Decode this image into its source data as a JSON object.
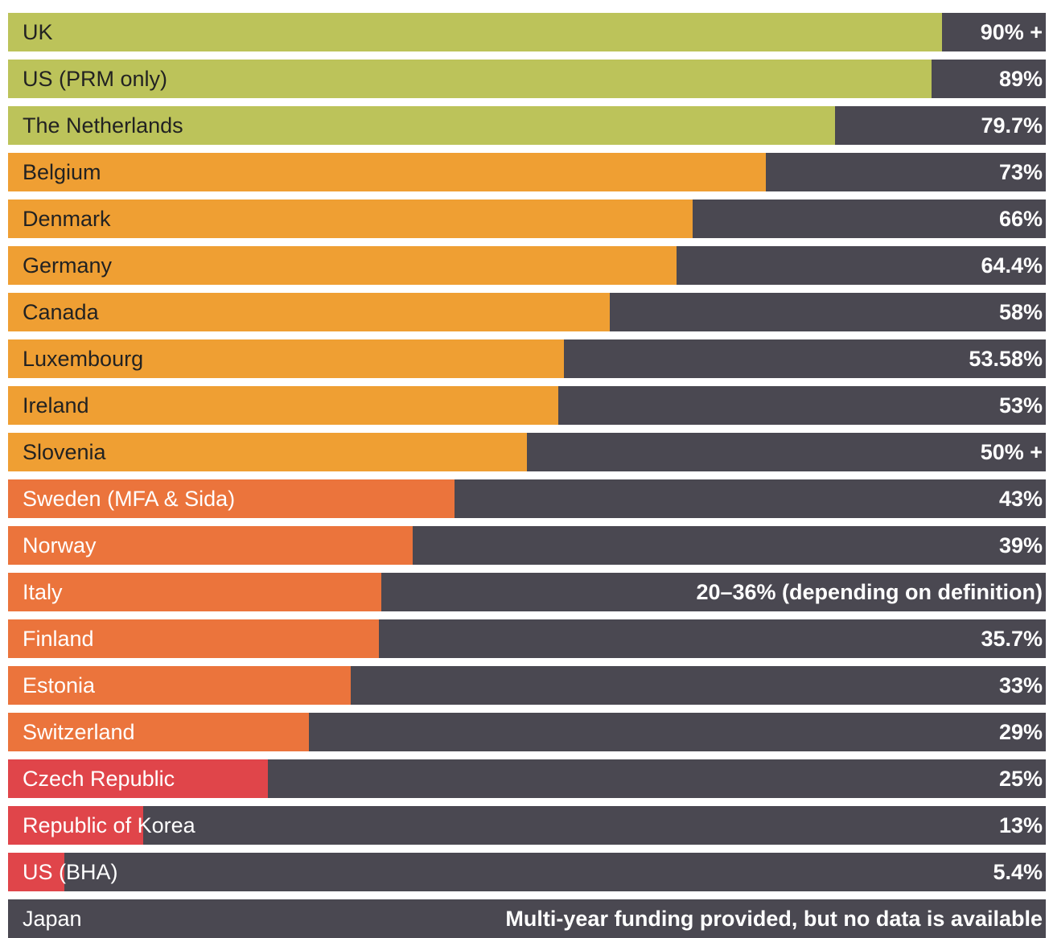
{
  "chart_data": {
    "type": "bar",
    "orientation": "horizontal",
    "xlim": [
      0,
      100
    ],
    "colors": {
      "track": "#4a4851",
      "green": "#bcc35a",
      "amber": "#ef9f33",
      "orange": "#eb743c",
      "red": "#e0454a"
    },
    "bars": [
      {
        "category": "UK",
        "value": 90,
        "display": "90% +",
        "color": "#bcc35a",
        "label_color": "#222222"
      },
      {
        "category": "US (PRM only)",
        "value": 89,
        "display": "89%",
        "color": "#bcc35a",
        "label_color": "#222222"
      },
      {
        "category": "The Netherlands",
        "value": 79.7,
        "display": "79.7%",
        "color": "#bcc35a",
        "label_color": "#222222"
      },
      {
        "category": "Belgium",
        "value": 73,
        "display": "73%",
        "color": "#ef9f33",
        "label_color": "#222222"
      },
      {
        "category": "Denmark",
        "value": 66,
        "display": "66%",
        "color": "#ef9f33",
        "label_color": "#222222"
      },
      {
        "category": "Germany",
        "value": 64.4,
        "display": "64.4%",
        "color": "#ef9f33",
        "label_color": "#222222"
      },
      {
        "category": "Canada",
        "value": 58,
        "display": "58%",
        "color": "#ef9f33",
        "label_color": "#222222"
      },
      {
        "category": "Luxembourg",
        "value": 53.58,
        "display": "53.58%",
        "color": "#ef9f33",
        "label_color": "#222222"
      },
      {
        "category": "Ireland",
        "value": 53,
        "display": "53%",
        "color": "#ef9f33",
        "label_color": "#222222"
      },
      {
        "category": "Slovenia",
        "value": 50,
        "display": "50% +",
        "color": "#ef9f33",
        "label_color": "#222222"
      },
      {
        "category": "Sweden (MFA & Sida)",
        "value": 43,
        "display": "43%",
        "color": "#eb743c",
        "label_color": "#ffffff"
      },
      {
        "category": "Norway",
        "value": 39,
        "display": "39%",
        "color": "#eb743c",
        "label_color": "#ffffff"
      },
      {
        "category": "Italy",
        "value": 36,
        "display": "20–36% (depending on definition)",
        "color": "#eb743c",
        "label_color": "#ffffff"
      },
      {
        "category": "Finland",
        "value": 35.7,
        "display": "35.7%",
        "color": "#eb743c",
        "label_color": "#ffffff"
      },
      {
        "category": "Estonia",
        "value": 33,
        "display": "33%",
        "color": "#eb743c",
        "label_color": "#ffffff"
      },
      {
        "category": "Switzerland",
        "value": 29,
        "display": "29%",
        "color": "#eb743c",
        "label_color": "#ffffff"
      },
      {
        "category": "Czech Republic",
        "value": 25,
        "display": "25%",
        "color": "#e0454a",
        "label_color": "#ffffff"
      },
      {
        "category": "Republic of Korea",
        "value": 13,
        "display": "13%",
        "color": "#e0454a",
        "label_color": "#ffffff"
      },
      {
        "category": "US (BHA)",
        "value": 5.4,
        "display": "5.4%",
        "color": "#e0454a",
        "label_color": "#ffffff"
      },
      {
        "category": "Japan",
        "value": 0,
        "display": "Multi-year funding provided, but no data is available",
        "color": "#4a4851",
        "label_color": "#ffffff"
      }
    ]
  }
}
